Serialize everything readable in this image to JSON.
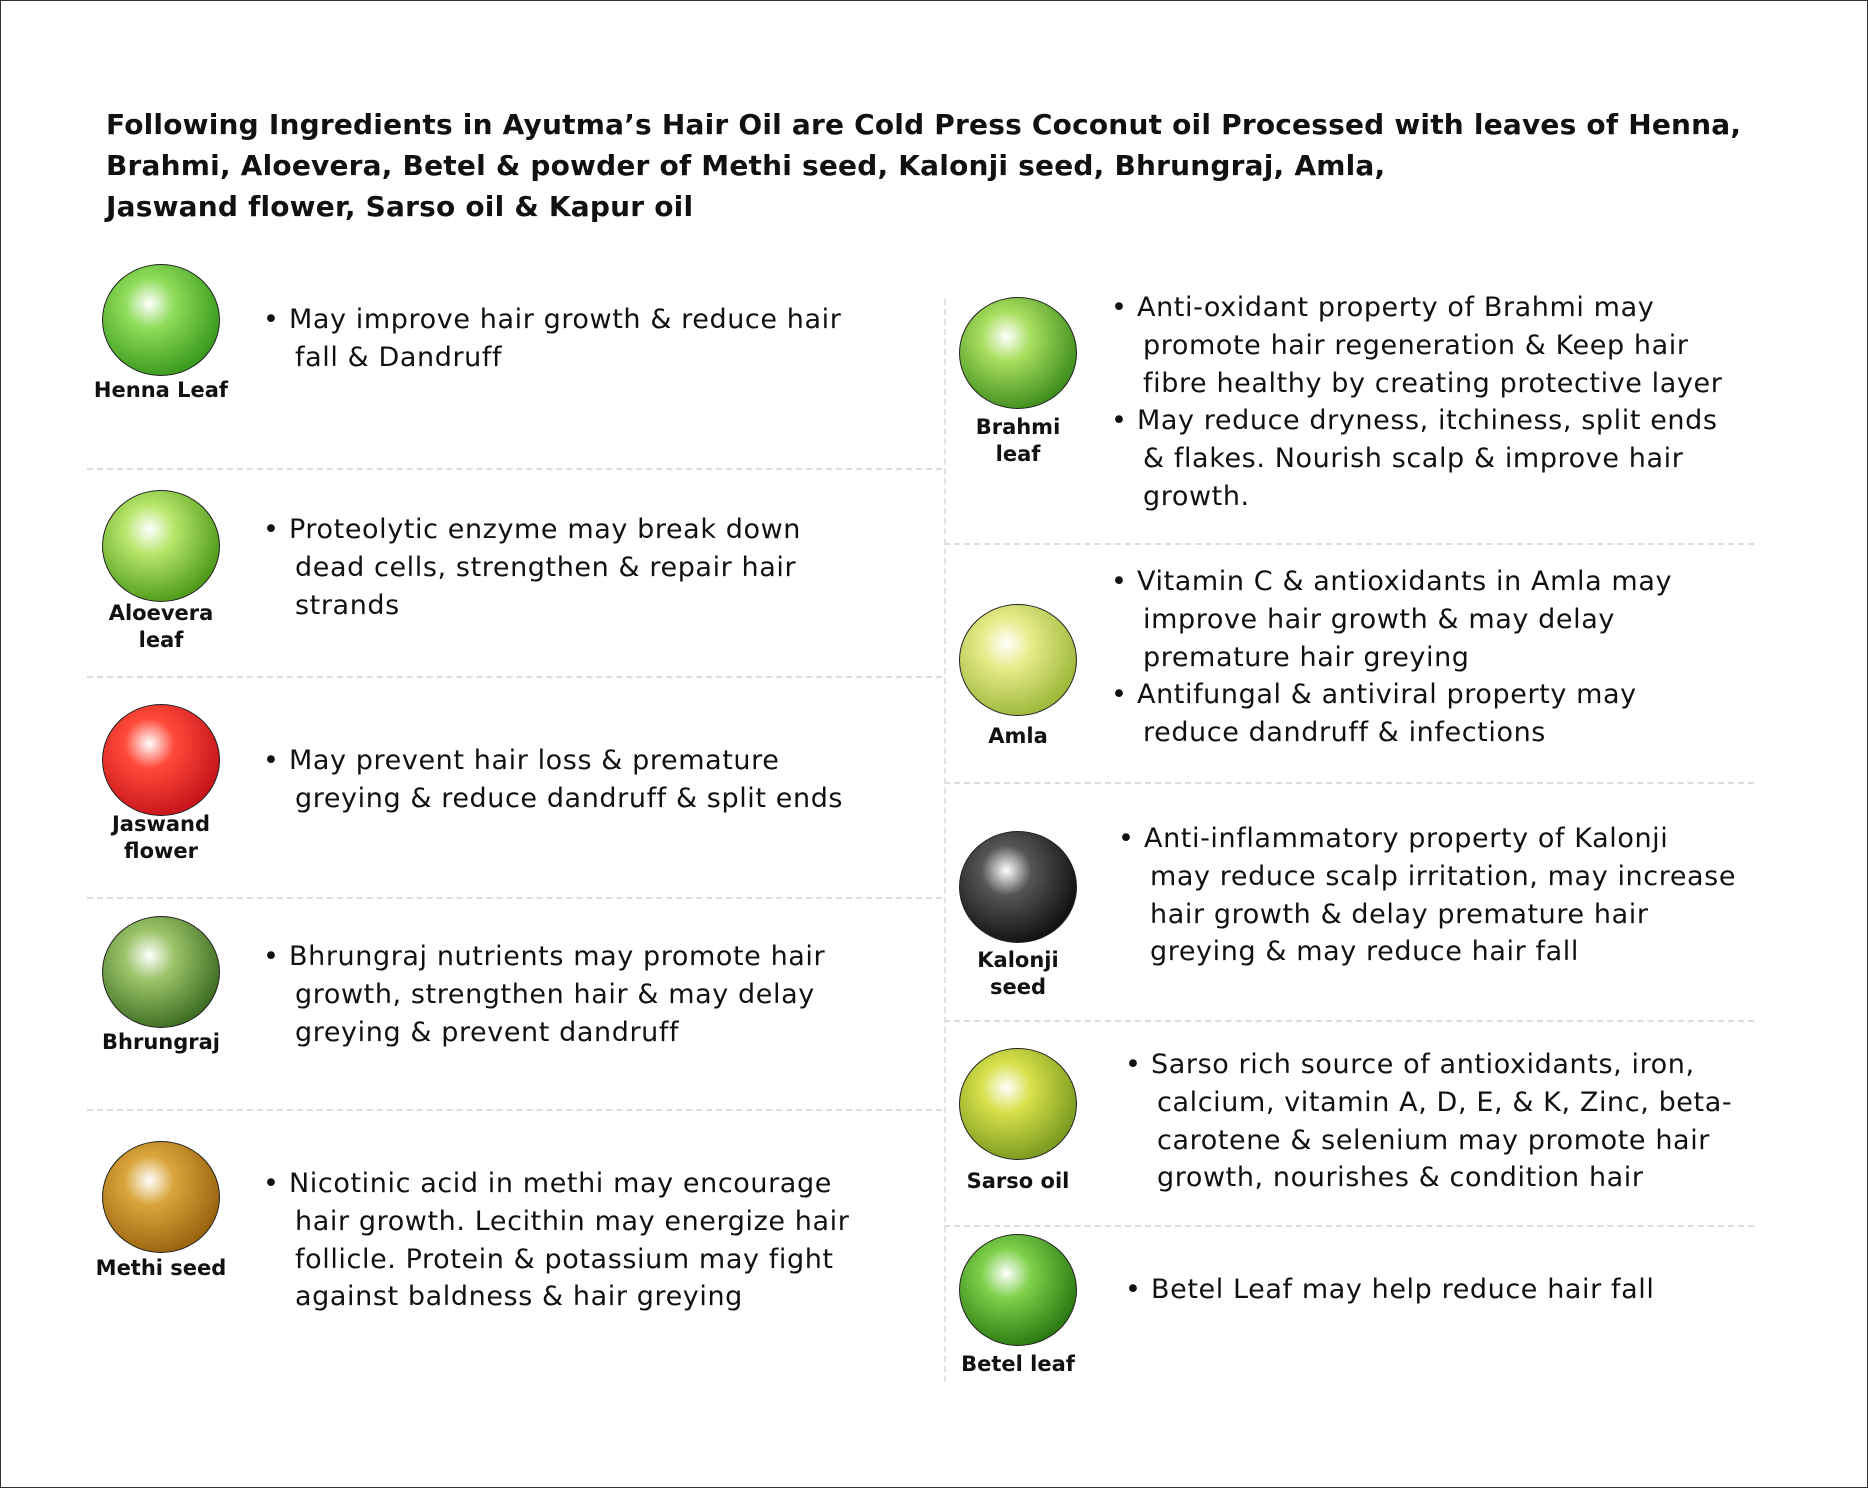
{
  "title_lines": [
    "Following Ingredients in Ayutma’s Hair Oil are Cold Press Coconut oil Processed with leaves of Henna,",
    "Brahmi, Aloevera, Betel & powder of Methi seed, Kalonji seed, Bhrungraj, Amla,",
    "Jaswand flower, Sarso oil & Kapur oil"
  ],
  "left_ingredients": [
    {
      "name": "Henna Leaf",
      "label_lines": [
        "Henna Leaf"
      ],
      "image": "henna-leaf-image",
      "colors": [
        "#8fdc5a",
        "#3a9a1c"
      ],
      "bullets": [
        [
          "May improve hair growth & reduce hair",
          "fall & Dandruff"
        ]
      ]
    },
    {
      "name": "Aloevera leaf",
      "label_lines": [
        "Aloevera",
        "leaf"
      ],
      "image": "aloevera-leaf-image",
      "colors": [
        "#b7e66a",
        "#4e9a1a"
      ],
      "bullets": [
        [
          "Proteolytic enzyme may break down",
          "dead cells, strengthen & repair hair",
          "strands"
        ]
      ]
    },
    {
      "name": "Jaswand flower",
      "label_lines": [
        "Jaswand",
        "flower"
      ],
      "image": "jaswand-flower-image",
      "colors": [
        "#ff4a3a",
        "#c8141a"
      ],
      "bullets": [
        [
          "May prevent hair loss & premature",
          "greying & reduce dandruff & split ends"
        ]
      ]
    },
    {
      "name": "Bhrungraj",
      "label_lines": [
        "Bhrungraj"
      ],
      "image": "bhrungraj-image",
      "colors": [
        "#9cc46a",
        "#3e6e22"
      ],
      "bullets": [
        [
          "Bhrungraj nutrients may promote hair",
          "growth, strengthen hair & may delay",
          "greying & prevent dandruff"
        ]
      ]
    },
    {
      "name": "Methi seed",
      "label_lines": [
        "Methi seed"
      ],
      "image": "methi-seed-image",
      "colors": [
        "#d9a53a",
        "#9a6410"
      ],
      "bullets": [
        [
          "Nicotinic acid in methi may encourage",
          "hair growth. Lecithin may energize hair",
          "follicle. Protein & potassium may fight",
          "against baldness & hair greying"
        ]
      ]
    }
  ],
  "right_ingredients": [
    {
      "name": "Brahmi leaf",
      "label_lines": [
        "Brahmi",
        "leaf"
      ],
      "image": "brahmi-leaf-image",
      "colors": [
        "#a8de5e",
        "#3f8e1e"
      ],
      "bullets": [
        [
          "Anti-oxidant property of Brahmi may",
          "promote hair regeneration & Keep hair",
          "fibre healthy by creating protective layer"
        ],
        [
          "May reduce dryness, itchiness, split ends",
          "& flakes. Nourish scalp & improve hair",
          "growth."
        ]
      ]
    },
    {
      "name": "Amla",
      "label_lines": [
        "Amla"
      ],
      "image": "amla-image",
      "colors": [
        "#e8eb8a",
        "#9cb83a"
      ],
      "bullets": [
        [
          "Vitamin C & antioxidants in Amla may",
          "improve hair growth & may delay",
          "premature hair greying"
        ],
        [
          "Antifungal & antiviral property may",
          "reduce dandruff & infections"
        ]
      ]
    },
    {
      "name": "Kalonji seed",
      "label_lines": [
        "Kalonji",
        "seed"
      ],
      "image": "kalonji-seed-image",
      "colors": [
        "#555555",
        "#111111"
      ],
      "bullets": [
        [
          "Anti-inflammatory property of Kalonji",
          "may reduce scalp irritation, may increase",
          "hair growth & delay premature hair",
          "greying & may reduce hair fall"
        ]
      ]
    },
    {
      "name": "Sarso oil",
      "label_lines": [
        "Sarso oil"
      ],
      "image": "sarso-oil-image",
      "colors": [
        "#d8e04a",
        "#7a9a20"
      ],
      "bullets": [
        [
          "Sarso rich source of antioxidants, iron,",
          "calcium, vitamin A, D, E, & K, Zinc, beta-",
          "carotene & selenium may promote hair",
          "growth,  nourishes & condition hair"
        ]
      ]
    },
    {
      "name": "Betel leaf",
      "label_lines": [
        "Betel leaf"
      ],
      "image": "betel-leaf-image",
      "colors": [
        "#7ed04a",
        "#2a7a12"
      ],
      "bullets": [
        [
          "Betel Leaf may help reduce hair fall"
        ]
      ]
    }
  ]
}
